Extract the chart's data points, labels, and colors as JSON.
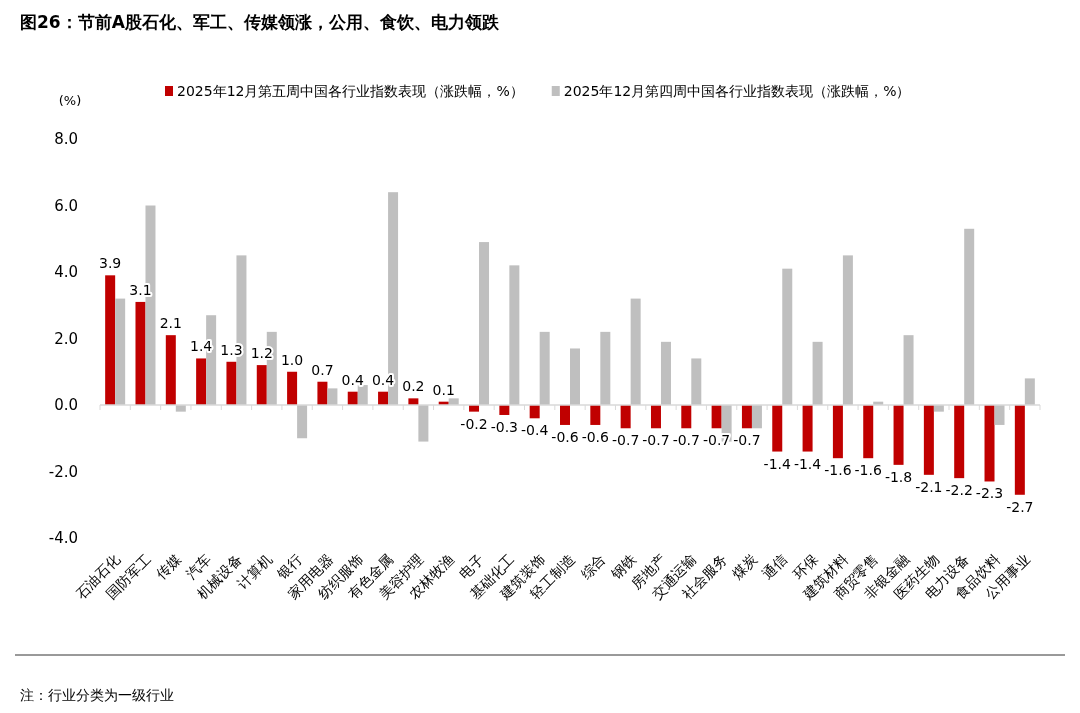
{
  "chart_data": {
    "type": "bar",
    "title": "图26：节前A股石化、军工、传媒领涨，公用、食饮、电力领跌",
    "ylabel": "(%)",
    "categories": [
      "石油石化",
      "国防军工",
      "传媒",
      "汽车",
      "机械设备",
      "计算机",
      "银行",
      "家用电器",
      "纺织服饰",
      "有色金属",
      "美容护理",
      "农林牧渔",
      "电子",
      "基础化工",
      "建筑装饰",
      "轻工制造",
      "综合",
      "钢铁",
      "房地产",
      "交通运输",
      "社会服务",
      "煤炭",
      "通信",
      "环保",
      "建筑材料",
      "商贸零售",
      "非银金融",
      "医药生物",
      "电力设备",
      "食品饮料",
      "公用事业"
    ],
    "series": [
      {
        "name": "2025年12月第五周中国各行业指数表现（涨跌幅，%）",
        "color": "#c00000",
        "values": [
          3.9,
          3.1,
          2.1,
          1.4,
          1.3,
          1.2,
          1.0,
          0.7,
          0.4,
          0.4,
          0.2,
          0.1,
          -0.2,
          -0.3,
          -0.4,
          -0.6,
          -0.6,
          -0.7,
          -0.7,
          -0.7,
          -0.7,
          -0.7,
          -1.4,
          -1.4,
          -1.6,
          -1.6,
          -1.8,
          -2.1,
          -2.2,
          -2.3,
          -2.7
        ],
        "value_labels": [
          "3.9",
          "3.1",
          "2.1",
          "1.4",
          "1.3",
          "1.2",
          "1.0",
          "0.7",
          "0.4",
          "0.4",
          "0.2",
          "0.1",
          "-0.2",
          "-0.3",
          "-0.4",
          "-0.6",
          "-0.6",
          "-0.7",
          "-0.7",
          "-0.7",
          "-0.7",
          "-0.7",
          "-1.4",
          "-1.4",
          "-1.6",
          "-1.6",
          "-1.8",
          "-2.1",
          "-2.2",
          "-2.3",
          "-2.7"
        ]
      },
      {
        "name": "2025年12月第四周中国各行业指数表现（涨跌幅，%）",
        "color": "#bfbfbf",
        "values": [
          3.2,
          6.0,
          -0.2,
          2.7,
          4.5,
          2.2,
          -1.0,
          0.5,
          0.6,
          6.4,
          -1.1,
          0.2,
          4.9,
          4.2,
          2.2,
          1.7,
          2.2,
          3.2,
          1.9,
          1.4,
          -1.1,
          -0.7,
          4.1,
          1.9,
          4.5,
          0.1,
          2.1,
          -0.2,
          5.3,
          -0.6,
          0.8
        ]
      }
    ],
    "ylim": [
      -4.0,
      8.0
    ],
    "yticks": [
      {
        "value": -4,
        "label": "-4.0"
      },
      {
        "value": -2,
        "label": "-2.0"
      },
      {
        "value": 0,
        "label": "0.0"
      },
      {
        "value": 2,
        "label": "2.0"
      },
      {
        "value": 4,
        "label": "4.0"
      },
      {
        "value": 6,
        "label": "6.0"
      },
      {
        "value": 8,
        "label": "8.0"
      }
    ],
    "legend": "top",
    "annotations": [
      "注：行业分类为一级行业"
    ]
  }
}
